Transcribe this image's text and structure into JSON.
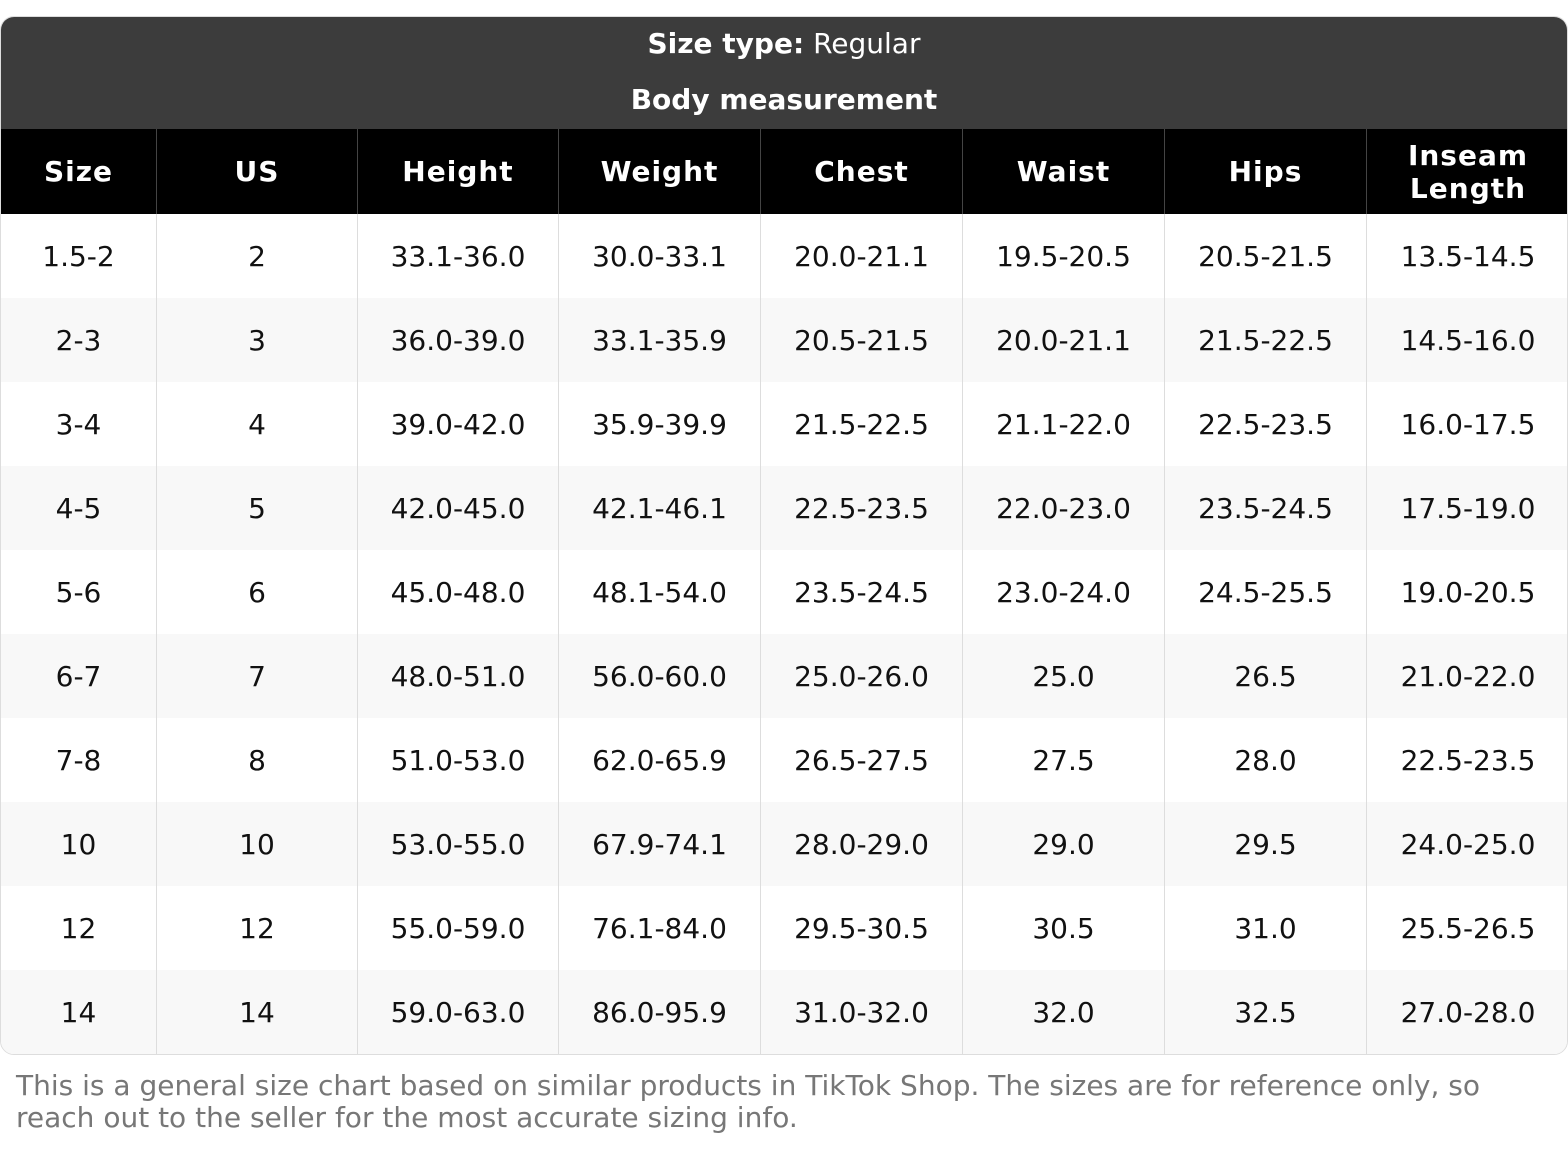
{
  "header": {
    "size_type_label": "Size type:",
    "size_type_value": "Regular",
    "subtitle": "Body measurement"
  },
  "table": {
    "columns": [
      "Size",
      "US",
      "Height",
      "Weight",
      "Chest",
      "Waist",
      "Hips",
      "Inseam Length"
    ],
    "rows": [
      [
        "1.5-2",
        "2",
        "33.1-36.0",
        "30.0-33.1",
        "20.0-21.1",
        "19.5-20.5",
        "20.5-21.5",
        "13.5-14.5"
      ],
      [
        "2-3",
        "3",
        "36.0-39.0",
        "33.1-35.9",
        "20.5-21.5",
        "20.0-21.1",
        "21.5-22.5",
        "14.5-16.0"
      ],
      [
        "3-4",
        "4",
        "39.0-42.0",
        "35.9-39.9",
        "21.5-22.5",
        "21.1-22.0",
        "22.5-23.5",
        "16.0-17.5"
      ],
      [
        "4-5",
        "5",
        "42.0-45.0",
        "42.1-46.1",
        "22.5-23.5",
        "22.0-23.0",
        "23.5-24.5",
        "17.5-19.0"
      ],
      [
        "5-6",
        "6",
        "45.0-48.0",
        "48.1-54.0",
        "23.5-24.5",
        "23.0-24.0",
        "24.5-25.5",
        "19.0-20.5"
      ],
      [
        "6-7",
        "7",
        "48.0-51.0",
        "56.0-60.0",
        "25.0-26.0",
        "25.0",
        "26.5",
        "21.0-22.0"
      ],
      [
        "7-8",
        "8",
        "51.0-53.0",
        "62.0-65.9",
        "26.5-27.5",
        "27.5",
        "28.0",
        "22.5-23.5"
      ],
      [
        "10",
        "10",
        "53.0-55.0",
        "67.9-74.1",
        "28.0-29.0",
        "29.0",
        "29.5",
        "24.0-25.0"
      ],
      [
        "12",
        "12",
        "55.0-59.0",
        "76.1-84.0",
        "29.5-30.5",
        "30.5",
        "31.0",
        "25.5-26.5"
      ],
      [
        "14",
        "14",
        "59.0-63.0",
        "86.0-95.9",
        "31.0-32.0",
        "32.0",
        "32.5",
        "27.0-28.0"
      ]
    ]
  },
  "footer": {
    "note": "This is a general size chart based on similar products in TikTok Shop. The sizes are for reference only, so reach out to the seller for the most accurate sizing info."
  }
}
